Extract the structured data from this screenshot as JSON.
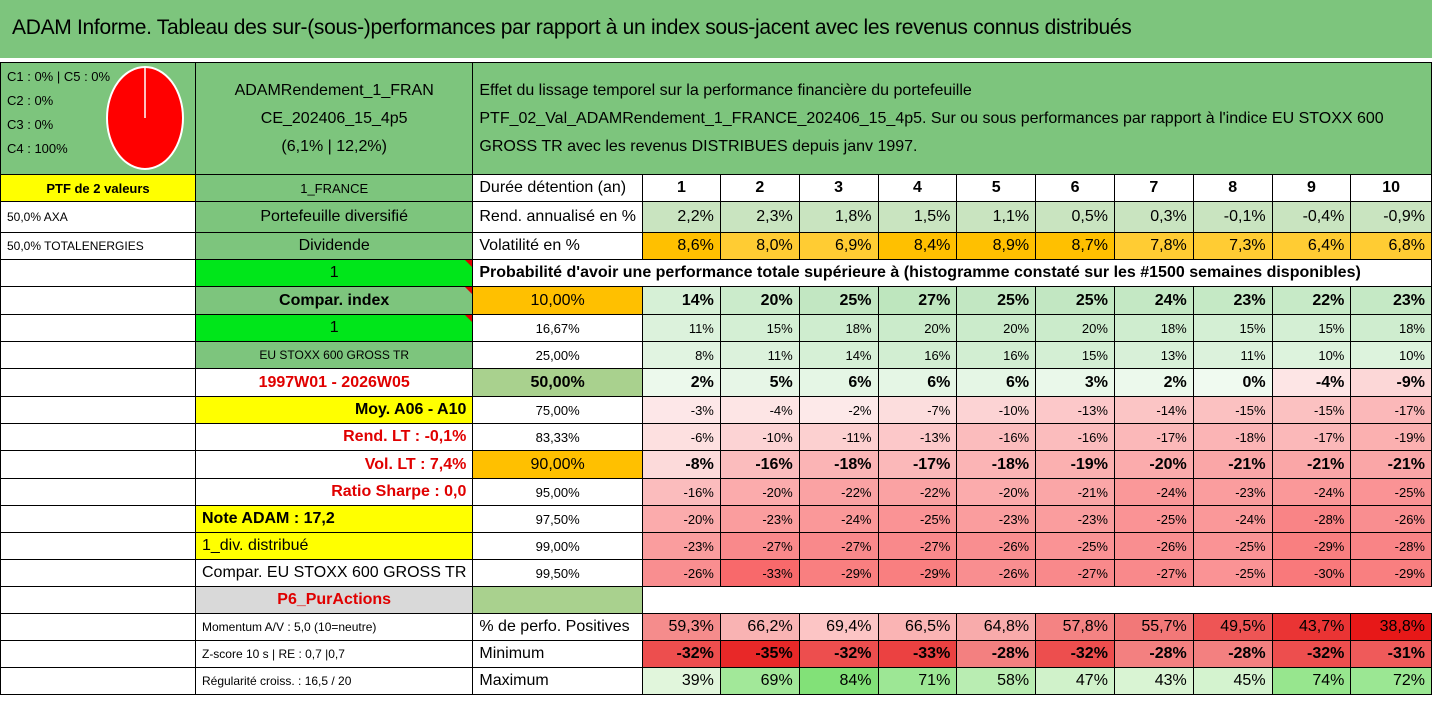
{
  "title": "ADAM Informe. Tableau des sur-(sous-)performances par rapport à un index sous-jacent avec les revenus connus distribués",
  "composition": [
    "C1 : 0% | C5 : 0%",
    "C2 : 0%",
    "C3 : 0%",
    "C4 : 100%"
  ],
  "fund_lines": [
    "ADAMRendement_1_FRAN",
    "CE_202406_15_4p5",
    "(6,1% | 12,2%)"
  ],
  "desc_lines": [
    "Effet du lissage temporel sur la performance financière du portefeuille",
    "PTF_02_Val_ADAMRendement_1_FRANCE_202406_15_4p5. Sur ou sous performances par rapport à l'indice EU STOXX 600",
    "GROSS TR avec les revenus DISTRIBUES depuis janv 1997."
  ],
  "ptf_label": "PTF de 2 valeurs",
  "holdings": [
    "50,0% AXA",
    "50,0% TOTALENERGIES"
  ],
  "left_col": [
    "1_FRANCE",
    "Portefeuille diversifié",
    "Dividende",
    "1",
    "Compar. index",
    "1",
    "EU STOXX 600 GROSS TR",
    "1997W01 - 2026W05",
    "Moy. A06 - A10",
    "Rend. LT : -0,1%",
    "Vol. LT : 7,4%",
    "Ratio Sharpe : 0,0",
    "Note ADAM : 17,2",
    "1_div. distribué",
    "Compar. EU STOXX 600 GROSS TR",
    "P6_PurActions",
    "Momentum A/V : 5,0 (10=neutre)",
    "Z-score 10 s | RE : 0,7 |0,7",
    "Régularité croiss. : 16,5 / 20"
  ],
  "header_label": "Durée détention (an)",
  "years": [
    "1",
    "2",
    "3",
    "4",
    "5",
    "6",
    "7",
    "8",
    "9",
    "10"
  ],
  "rend_label": "Rend. annualisé en %",
  "rend": [
    "2,2%",
    "2,3%",
    "1,8%",
    "1,5%",
    "1,1%",
    "0,5%",
    "0,3%",
    "-0,1%",
    "-0,4%",
    "-0,9%"
  ],
  "vol_label": "Volatilité en %",
  "vol": [
    "8,6%",
    "8,0%",
    "6,9%",
    "8,4%",
    "8,9%",
    "8,7%",
    "7,8%",
    "7,3%",
    "6,4%",
    "6,8%"
  ],
  "prob_title": "Probabilité d'avoir une performance totale supérieure à (histogramme constaté sur les #1500 semaines disponibles)",
  "prob_rows": [
    {
      "pct": "10,00%",
      "values": [
        "14%",
        "20%",
        "25%",
        "27%",
        "25%",
        "25%",
        "24%",
        "23%",
        "22%",
        "23%"
      ]
    },
    {
      "pct": "16,67%",
      "values": [
        "11%",
        "15%",
        "18%",
        "20%",
        "20%",
        "20%",
        "18%",
        "15%",
        "15%",
        "18%"
      ]
    },
    {
      "pct": "25,00%",
      "values": [
        "8%",
        "11%",
        "14%",
        "16%",
        "16%",
        "15%",
        "13%",
        "11%",
        "10%",
        "10%"
      ]
    },
    {
      "pct": "50,00%",
      "values": [
        "2%",
        "5%",
        "6%",
        "6%",
        "6%",
        "3%",
        "2%",
        "0%",
        "-4%",
        "-9%"
      ]
    },
    {
      "pct": "75,00%",
      "values": [
        "-3%",
        "-4%",
        "-2%",
        "-7%",
        "-10%",
        "-13%",
        "-14%",
        "-15%",
        "-15%",
        "-17%"
      ]
    },
    {
      "pct": "83,33%",
      "values": [
        "-6%",
        "-10%",
        "-11%",
        "-13%",
        "-16%",
        "-16%",
        "-17%",
        "-18%",
        "-17%",
        "-19%"
      ]
    },
    {
      "pct": "90,00%",
      "values": [
        "-8%",
        "-16%",
        "-18%",
        "-17%",
        "-18%",
        "-19%",
        "-20%",
        "-21%",
        "-21%",
        "-21%"
      ]
    },
    {
      "pct": "95,00%",
      "values": [
        "-16%",
        "-20%",
        "-22%",
        "-22%",
        "-20%",
        "-21%",
        "-24%",
        "-23%",
        "-24%",
        "-25%"
      ]
    },
    {
      "pct": "97,50%",
      "values": [
        "-20%",
        "-23%",
        "-24%",
        "-25%",
        "-23%",
        "-23%",
        "-25%",
        "-24%",
        "-28%",
        "-26%"
      ]
    },
    {
      "pct": "99,00%",
      "values": [
        "-23%",
        "-27%",
        "-27%",
        "-27%",
        "-26%",
        "-25%",
        "-26%",
        "-25%",
        "-29%",
        "-28%"
      ]
    },
    {
      "pct": "99,50%",
      "values": [
        "-26%",
        "-33%",
        "-29%",
        "-29%",
        "-26%",
        "-27%",
        "-27%",
        "-25%",
        "-30%",
        "-29%"
      ]
    }
  ],
  "pos_label": "% de perfo. Positives",
  "pos": [
    "59,3%",
    "66,2%",
    "69,4%",
    "66,5%",
    "64,8%",
    "57,8%",
    "55,7%",
    "49,5%",
    "43,7%",
    "38,8%"
  ],
  "min_label": "Minimum",
  "min": [
    "-32%",
    "-35%",
    "-32%",
    "-33%",
    "-28%",
    "-32%",
    "-28%",
    "-28%",
    "-32%",
    "-31%"
  ],
  "max_label": "Maximum",
  "max": [
    "39%",
    "69%",
    "84%",
    "71%",
    "58%",
    "47%",
    "43%",
    "45%",
    "74%",
    "72%"
  ],
  "colors": {
    "title_green": "#7dc57d",
    "yellow": "#ffff00",
    "orange": "#ffc000",
    "bright_green": "#00e61a",
    "pie_red": "#ff0000"
  }
}
